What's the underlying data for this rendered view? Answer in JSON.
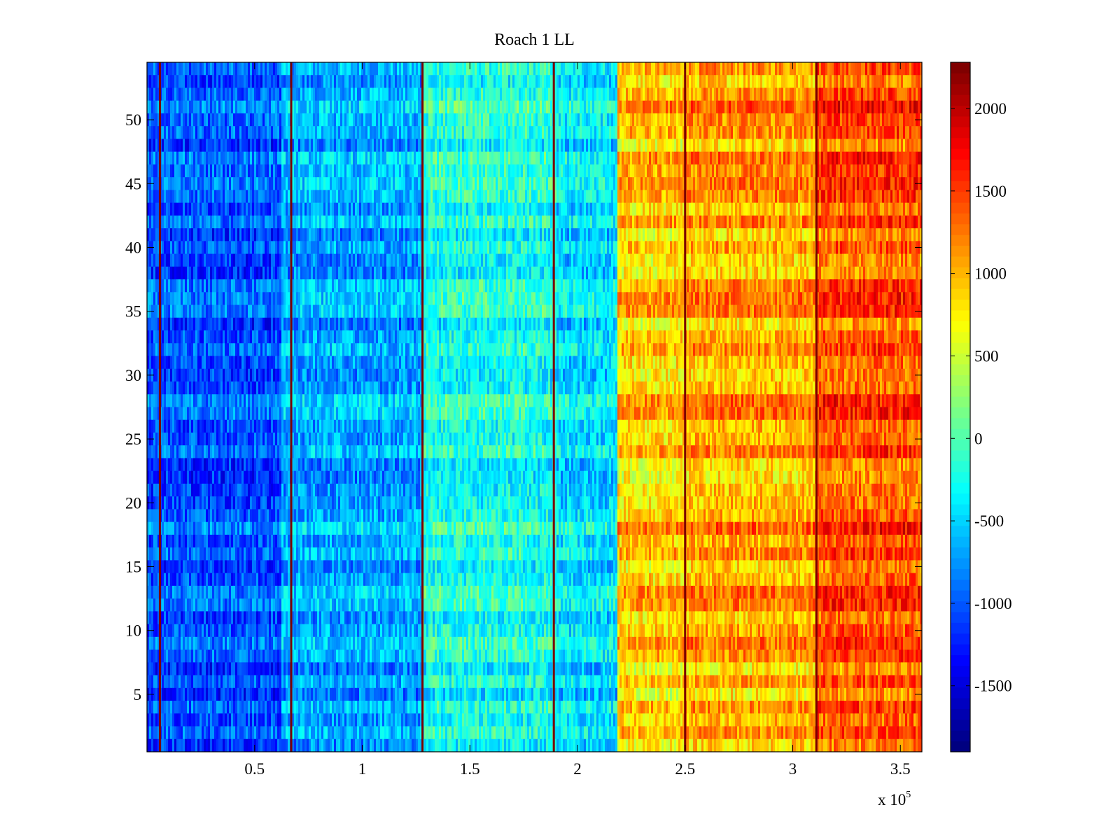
{
  "chart_data": {
    "type": "heatmap",
    "title": "Roach 1 LL",
    "xlabel": "",
    "ylabel": "",
    "x_multiplier": "x 10",
    "x_multiplier_exponent": "5",
    "xlim": [
      0,
      3.6
    ],
    "ylim": [
      0.5,
      54.5
    ],
    "x_ticks": [
      0.5,
      1,
      1.5,
      2,
      2.5,
      3,
      3.5
    ],
    "x_tick_labels": [
      "0.5",
      "1",
      "1.5",
      "2",
      "2.5",
      "3",
      "3.5"
    ],
    "y_ticks": [
      5,
      10,
      15,
      20,
      25,
      30,
      35,
      40,
      45,
      50
    ],
    "y_tick_labels": [
      "5",
      "10",
      "15",
      "20",
      "25",
      "30",
      "35",
      "40",
      "45",
      "50"
    ],
    "colorbar": {
      "colormap": "jet",
      "clim": [
        -1900,
        2280
      ],
      "ticks": [
        -1500,
        -1000,
        -500,
        0,
        500,
        1000,
        1500,
        2000
      ],
      "tick_labels": [
        "-1500",
        "-1000",
        "-500",
        "0",
        "500",
        "1000",
        "1500",
        "2000"
      ]
    },
    "rows": 54,
    "segments": [
      {
        "x_start": 0.0,
        "x_end": 0.62,
        "mean": -1050
      },
      {
        "x_start": 0.62,
        "x_end": 1.28,
        "mean": -700
      },
      {
        "x_start": 1.28,
        "x_end": 1.9,
        "mean": -250
      },
      {
        "x_start": 1.9,
        "x_end": 2.19,
        "mean": -450
      },
      {
        "x_start": 2.19,
        "x_end": 2.5,
        "mean": 900
      },
      {
        "x_start": 2.5,
        "x_end": 3.11,
        "mean": 1050
      },
      {
        "x_start": 3.11,
        "x_end": 3.6,
        "mean": 1400
      }
    ],
    "dark_red_columns_x": [
      0.06,
      0.67,
      1.28,
      1.89,
      2.5,
      3.11
    ],
    "grid": false
  }
}
